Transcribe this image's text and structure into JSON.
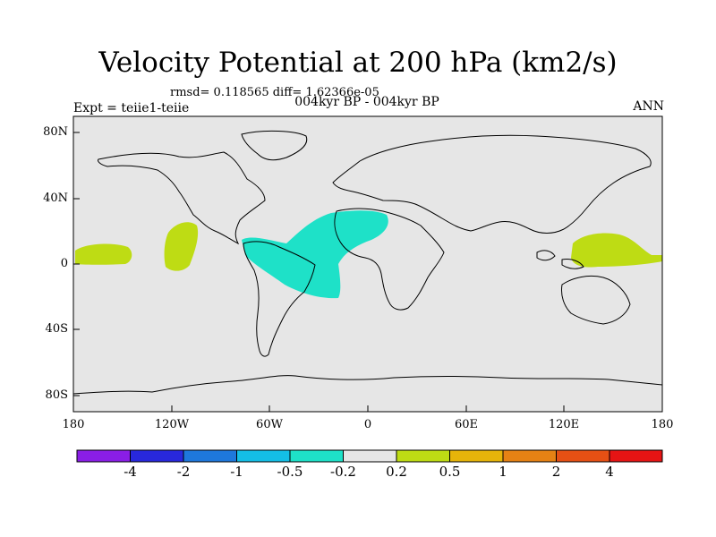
{
  "title": "Velocity Potential at 200 hPa (km2/s)",
  "stats": "rmsd= 0.118565  diff= 1.62366e-05",
  "experiment": "Expt = teiie1-teiie",
  "period": "004kyr BP - 004kyr BP",
  "season": "ANN",
  "map": {
    "projection": "cylindrical equidistant",
    "lon_range": [
      -180,
      180
    ],
    "lat_range": [
      -90,
      90
    ],
    "background_color": "#e6e6e6",
    "lat_ticks": [
      {
        "value": 80,
        "label": "80N"
      },
      {
        "value": 40,
        "label": "40N"
      },
      {
        "value": 0,
        "label": "0"
      },
      {
        "value": -40,
        "label": "40S"
      },
      {
        "value": -80,
        "label": "80S"
      }
    ],
    "lon_ticks": [
      {
        "value": -180,
        "label": "180"
      },
      {
        "value": -120,
        "label": "120W"
      },
      {
        "value": -60,
        "label": "60W"
      },
      {
        "value": 0,
        "label": "0"
      },
      {
        "value": 60,
        "label": "60E"
      },
      {
        "value": 120,
        "label": "120E"
      },
      {
        "value": 180,
        "label": "180"
      }
    ]
  },
  "colorbar": {
    "colors": [
      "#8a1ee6",
      "#2828dc",
      "#1e78dc",
      "#14bee6",
      "#1ee1c8",
      "#e6e6e6",
      "#bedc14",
      "#e6b40a",
      "#e68214",
      "#e65014",
      "#e61414"
    ],
    "labels": [
      "-4",
      "-2",
      "-1",
      "-0.5",
      "-0.2",
      "0.2",
      "0.5",
      "1",
      "2",
      "4"
    ]
  }
}
